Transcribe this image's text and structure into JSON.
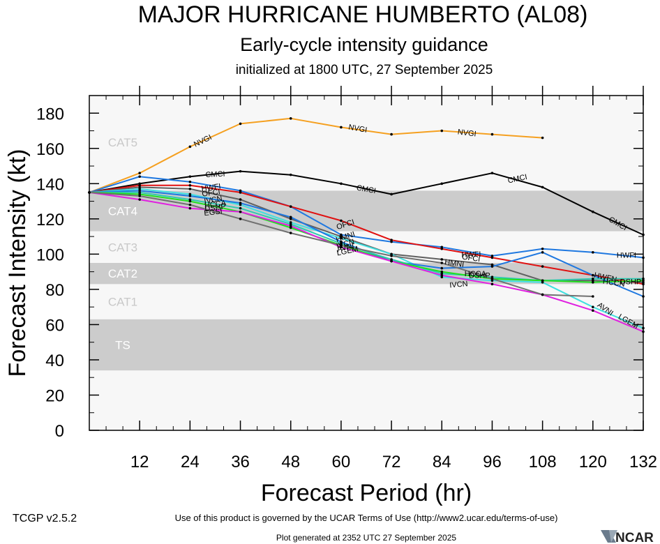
{
  "title": "MAJOR HURRICANE HUMBERTO (AL08)",
  "subtitle": "Early-cycle intensity guidance",
  "init_line": "initialized at 1800 UTC, 27 September 2025",
  "version": "TCGP v2.5.2",
  "terms": "Use of this product is governed by the UCAR Terms of Use (http://www2.ucar.edu/terms-of-use)",
  "generated": "Plot generated at 2352 UTC   27 September 2025",
  "logo_text": "NCAR",
  "chart_data": {
    "type": "line",
    "xlabel": "Forecast Period (hr)",
    "ylabel": "Forecast Intensity (kt)",
    "xlim": [
      0,
      132
    ],
    "ylim": [
      0,
      190
    ],
    "xticks": [
      12,
      24,
      36,
      48,
      60,
      72,
      84,
      96,
      108,
      120,
      132
    ],
    "yticks": [
      0,
      20,
      40,
      60,
      80,
      100,
      120,
      140,
      160,
      180
    ],
    "bands": [
      {
        "label": "CAT5",
        "from": 137,
        "to": 190,
        "fill": "#f7f7f7",
        "text_color": "#c8c8c8"
      },
      {
        "label": "CAT4",
        "from": 113,
        "to": 136,
        "fill": "#cccccc",
        "text_color": "#ffffff"
      },
      {
        "label": "CAT3",
        "from": 96,
        "to": 112,
        "fill": "#f7f7f7",
        "text_color": "#c8c8c8"
      },
      {
        "label": "CAT2",
        "from": 83,
        "to": 95,
        "fill": "#cccccc",
        "text_color": "#ffffff"
      },
      {
        "label": "CAT1",
        "from": 64,
        "to": 82,
        "fill": "#f7f7f7",
        "text_color": "#c8c8c8"
      },
      {
        "label": "TS",
        "from": 34,
        "to": 63,
        "fill": "#cccccc",
        "text_color": "#ffffff"
      }
    ],
    "series": [
      {
        "name": "NVGI",
        "color": "#f5a020",
        "x": [
          0,
          12,
          24,
          36,
          48,
          60,
          72,
          84,
          96,
          108
        ],
        "y": [
          135,
          146,
          161,
          174,
          177,
          172,
          168,
          170,
          168,
          166
        ]
      },
      {
        "name": "CMCI",
        "color": "#000000",
        "x": [
          0,
          12,
          24,
          36,
          48,
          60,
          72,
          84,
          96,
          108,
          120,
          132
        ],
        "y": [
          135,
          140,
          144,
          147,
          145,
          140,
          134,
          140,
          146,
          138,
          124,
          111
        ]
      },
      {
        "name": "HWFI",
        "color": "#1f78e0",
        "x": [
          0,
          12,
          24,
          36,
          48,
          60,
          72,
          84,
          96,
          108,
          120,
          132
        ],
        "y": [
          135,
          144,
          141,
          136,
          127,
          111,
          107,
          104,
          99,
          103,
          101,
          98
        ]
      },
      {
        "name": "OFCI",
        "color": "#e01010",
        "x": [
          0,
          12,
          24,
          36,
          48,
          60,
          72,
          84,
          96,
          108,
          120,
          132
        ],
        "y": [
          135,
          139,
          139,
          135,
          127,
          119,
          108,
          103,
          98,
          93,
          88,
          83
        ]
      },
      {
        "name": "HMNI",
        "color": "#606060",
        "x": [
          0,
          12,
          24,
          36,
          48,
          60,
          72,
          84,
          96,
          108,
          120,
          132
        ],
        "y": [
          135,
          138,
          137,
          131,
          120,
          110,
          100,
          97,
          94,
          85,
          85,
          84
        ]
      },
      {
        "name": "IVCN",
        "color": "#40e0e0",
        "x": [
          0,
          12,
          24,
          36,
          48,
          60,
          72,
          84,
          96,
          108,
          120,
          132
        ],
        "y": [
          135,
          137,
          134,
          128,
          118,
          109,
          100,
          87,
          85,
          84,
          70,
          58
        ]
      },
      {
        "name": "AVNI",
        "color": "#1f78e0",
        "x": [
          0,
          12,
          24,
          36,
          48,
          60,
          72,
          84,
          96,
          108,
          120,
          132
        ],
        "y": [
          135,
          136,
          133,
          129,
          121,
          107,
          96,
          92,
          93,
          101,
          88,
          76
        ]
      },
      {
        "name": "HCCA",
        "color": "#30c8b0",
        "x": [
          0,
          12,
          24,
          36,
          48,
          60,
          72,
          84,
          96,
          108,
          120,
          132
        ],
        "y": [
          135,
          135,
          131,
          126,
          117,
          106,
          97,
          89,
          87,
          85,
          86,
          86
        ]
      },
      {
        "name": "DSHP",
        "color": "#20e020",
        "x": [
          0,
          12,
          24,
          36,
          48,
          60,
          72,
          84,
          96,
          108,
          120,
          132
        ],
        "y": [
          135,
          134,
          130,
          124,
          115,
          105,
          96,
          90,
          86,
          85,
          84,
          85
        ]
      },
      {
        "name": "LGEM",
        "color": "#e020e0",
        "x": [
          0,
          12,
          24,
          36,
          48,
          60,
          72,
          84,
          96,
          108,
          120,
          132
        ],
        "y": [
          135,
          131,
          126,
          124,
          116,
          104,
          96,
          88,
          83,
          77,
          68,
          56
        ]
      },
      {
        "name": "EGSI",
        "color": "#707070",
        "x": [
          0,
          12,
          24,
          36,
          48,
          60,
          72,
          84,
          96,
          108,
          120
        ],
        "y": [
          135,
          133,
          128,
          120,
          112,
          105,
          99,
          95,
          86,
          77,
          76
        ]
      }
    ],
    "annotations": [
      {
        "text": "NVGI",
        "x": 27,
        "y": 164.5,
        "angle": -26
      },
      {
        "text": "NVGI",
        "x": 64,
        "y": 171.5,
        "angle": 10
      },
      {
        "text": "NVGI",
        "x": 90,
        "y": 169,
        "angle": 7
      },
      {
        "text": "CMCI",
        "x": 30,
        "y": 145.5,
        "angle": -3
      },
      {
        "text": "CMCI",
        "x": 66,
        "y": 137,
        "angle": 10
      },
      {
        "text": "CMCI",
        "x": 102,
        "y": 143,
        "angle": -12
      },
      {
        "text": "CMCI",
        "x": 126,
        "y": 117.5,
        "angle": 30
      },
      {
        "text": "HWFI",
        "x": 128,
        "y": 99.5,
        "angle": 0
      },
      {
        "text": "AVNI",
        "x": 123,
        "y": 69,
        "angle": 35
      },
      {
        "text": "LGEM",
        "x": 128.5,
        "y": 62,
        "angle": 30
      },
      {
        "text": "HWFI",
        "x": 91,
        "y": 100,
        "angle": -2
      },
      {
        "text": "OFCI",
        "x": 91,
        "y": 98,
        "angle": 8
      },
      {
        "text": "HMNI",
        "x": 87,
        "y": 95,
        "angle": 8
      },
      {
        "text": "IVCN",
        "x": 88,
        "y": 83,
        "angle": -5
      },
      {
        "text": "HCCA",
        "x": 92,
        "y": 89,
        "angle": 0
      },
      {
        "text": "DSHP",
        "x": 93,
        "y": 88,
        "angle": 0
      },
      {
        "text": "HWFI",
        "x": 29,
        "y": 138,
        "angle": -8
      },
      {
        "text": "OFCI",
        "x": 29,
        "y": 135,
        "angle": -8
      },
      {
        "text": "IVCN",
        "x": 29.5,
        "y": 131,
        "angle": -10
      },
      {
        "text": "HCCA",
        "x": 30,
        "y": 128.5,
        "angle": -8
      },
      {
        "text": "DSHP",
        "x": 30,
        "y": 126.5,
        "angle": -8
      },
      {
        "text": "EGSI",
        "x": 29.5,
        "y": 124,
        "angle": -6
      },
      {
        "text": "OFCI",
        "x": 61,
        "y": 117,
        "angle": -18
      },
      {
        "text": "HMNI",
        "x": 61,
        "y": 110,
        "angle": -18
      },
      {
        "text": "IVCN",
        "x": 61,
        "y": 106,
        "angle": -15
      },
      {
        "text": "AVNI",
        "x": 61,
        "y": 104,
        "angle": -15
      },
      {
        "text": "LGEM",
        "x": 61.5,
        "y": 102,
        "angle": -12
      },
      {
        "text": "HWFN",
        "x": 123,
        "y": 87,
        "angle": 12
      },
      {
        "text": "HCCN",
        "x": 125,
        "y": 84,
        "angle": 8
      },
      {
        "text": "DSHP",
        "x": 129,
        "y": 84.5,
        "angle": 0
      }
    ]
  }
}
